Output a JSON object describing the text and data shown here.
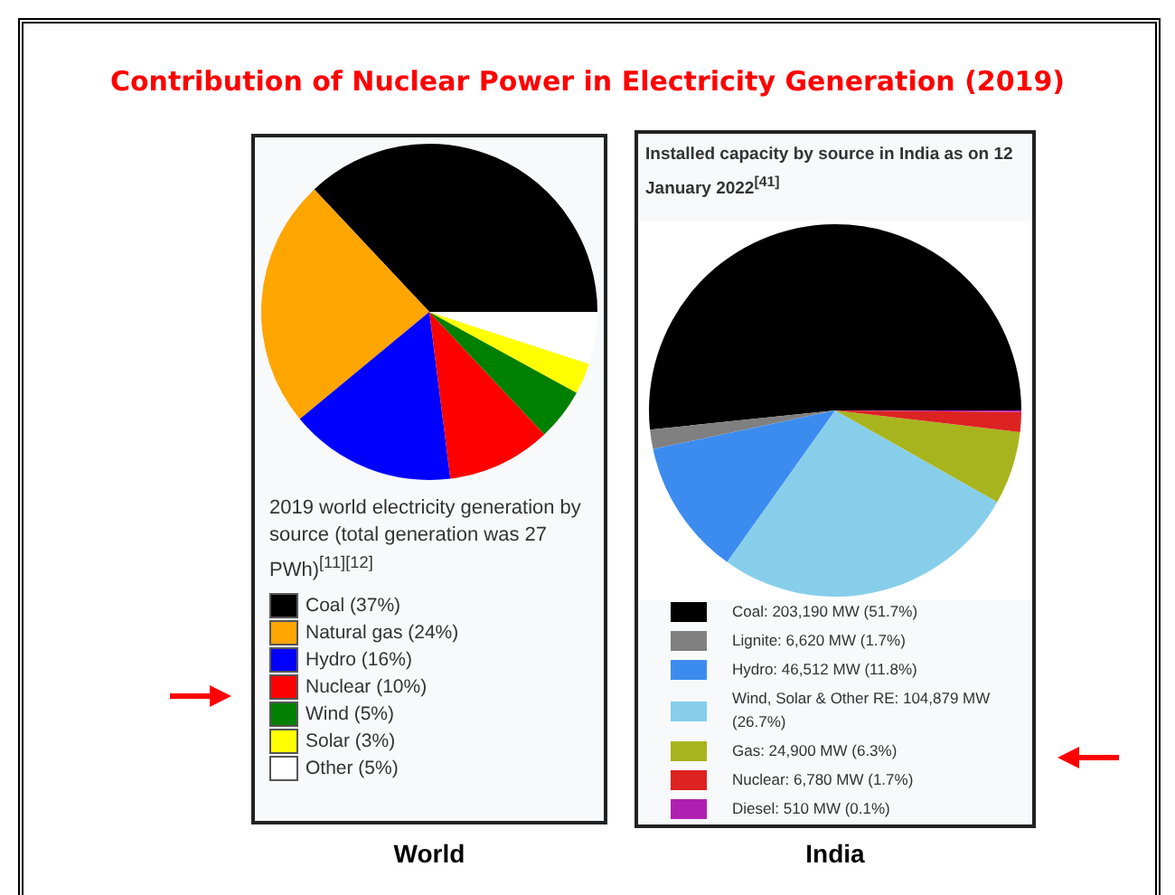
{
  "chart_data": [
    {
      "type": "pie",
      "title": "Contribution of Nuclear Power in Electricity Generation (2019)",
      "subtitle": "2019 world electricity generation by source (total generation was 27 PWh)$^{[11][12]}$",
      "xlabel": "World",
      "legend": "bottom",
      "categories": [
        "Coal (37%)",
        "Natural gas (24%)",
        "Hydro (16%)",
        "Nuclear (10%)",
        "Wind (5%)",
        "Solar (3%)",
        "Other (5%)"
      ],
      "values": [
        37,
        24,
        16,
        10,
        5,
        3,
        5
      ],
      "colors": [
        "#000000",
        "#ffa500",
        "#0000ff",
        "#ff0000",
        "#008000",
        "#ffff00",
        "#ffffff"
      ]
    },
    {
      "type": "pie",
      "title": "Installed capacity by source in India as on 12 January 2022$^{[41]}$",
      "xlabel": "India",
      "legend": "bottom",
      "categories": [
        "Coal: 203,190 MW (51.7%)",
        "Lignite: 6,620 MW (1.7%)",
        "Hydro: 46,512 MW (11.8%)",
        "Wind, Solar & Other RE: 104,879 MW (26.7%)",
        "Gas: 24,900 MW (6.3%)",
        "Nuclear: 6,780 MW (1.7%)",
        "Diesel: 510 MW (0.1%)"
      ],
      "values": [
        203190,
        6620,
        46512,
        104879,
        24900,
        6780,
        510
      ],
      "colors": [
        "#000000",
        "#808080",
        "#3c8cf0",
        "#87ceeb",
        "#a8b41e",
        "#dd2222",
        "#b020b0"
      ]
    }
  ]
}
